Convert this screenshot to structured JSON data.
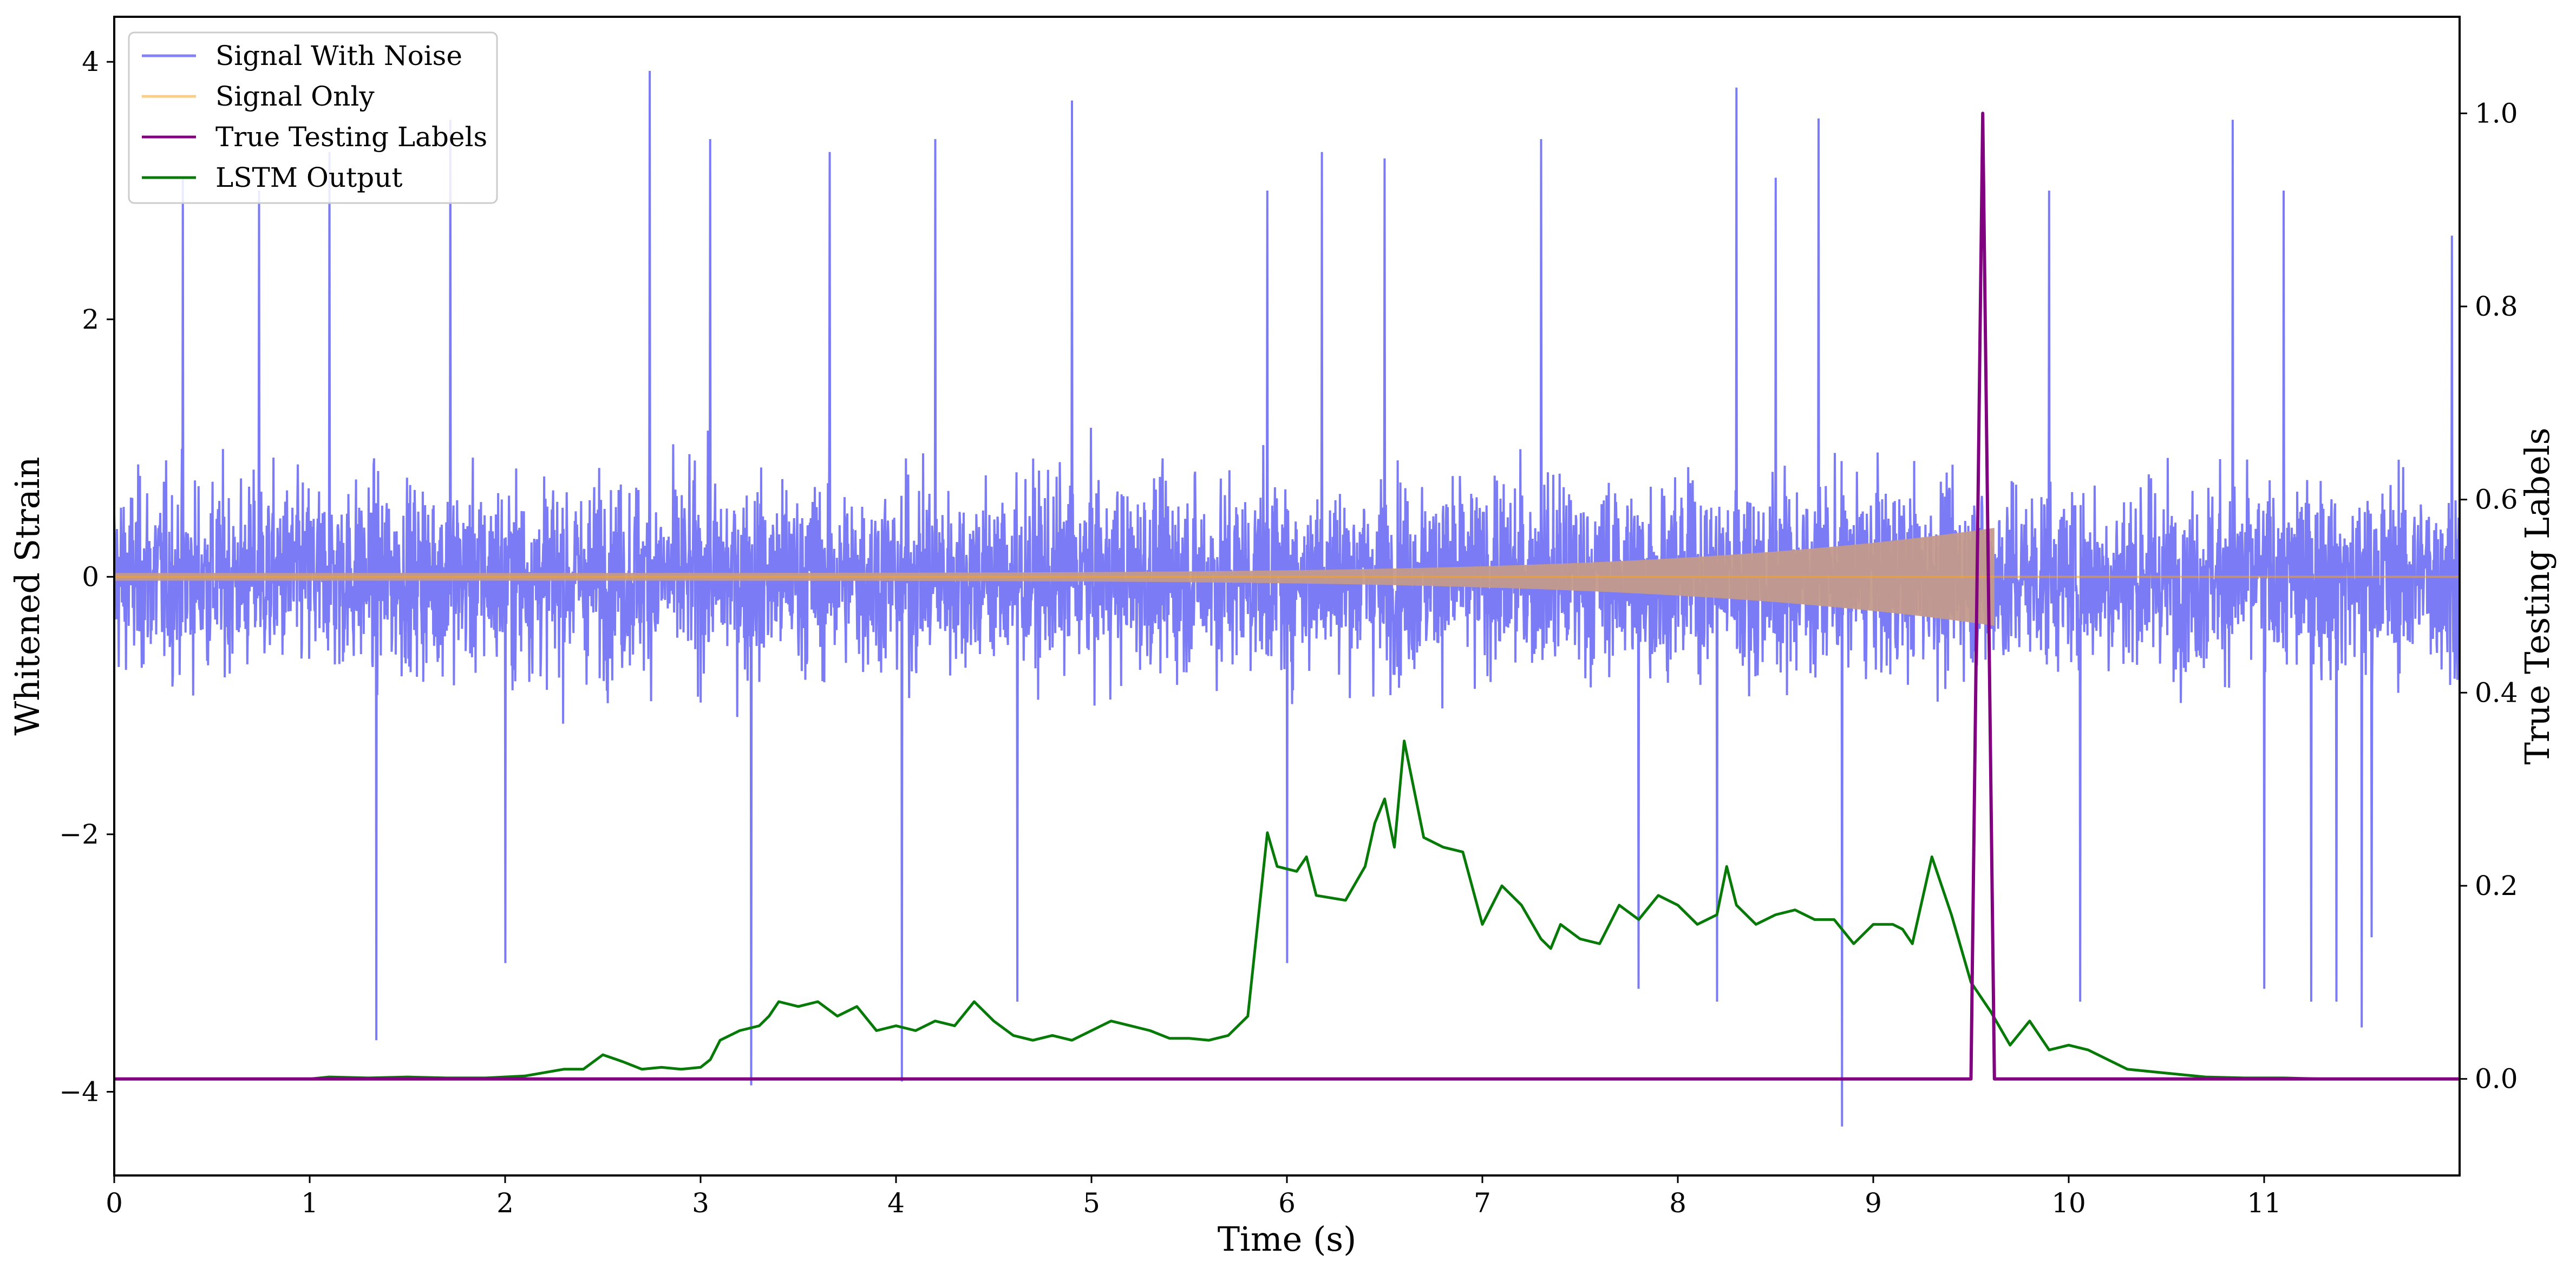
{
  "chart_data": {
    "type": "line",
    "title": "",
    "xlabel": "Time (s)",
    "ylabel_left": "Whitened Strain",
    "ylabel_right": "True Testing Labels",
    "xlim": [
      0,
      12
    ],
    "ylim_left": [
      -4.65,
      4.35
    ],
    "ylim_right": [
      -0.1,
      1.1
    ],
    "xticks": [
      0,
      1,
      2,
      3,
      4,
      5,
      6,
      7,
      8,
      9,
      10,
      11
    ],
    "yticks_left": [
      -4,
      -2,
      0,
      2,
      4
    ],
    "yticks_right": [
      0.0,
      0.2,
      0.4,
      0.6,
      0.8,
      1.0
    ],
    "grid": false,
    "legend_position": "top-left",
    "series": [
      {
        "name": "Signal With Noise",
        "axis": "left",
        "color": "#7b7bf5",
        "noise_std": 0.72,
        "spikes": [
          [
            0.35,
            3.1
          ],
          [
            0.74,
            3.0
          ],
          [
            1.1,
            3.3
          ],
          [
            1.34,
            -3.6
          ],
          [
            1.72,
            3.55
          ],
          [
            2.0,
            -3.0
          ],
          [
            2.74,
            3.93
          ],
          [
            3.05,
            3.4
          ],
          [
            3.26,
            -3.95
          ],
          [
            3.66,
            3.3
          ],
          [
            4.03,
            -3.92
          ],
          [
            4.2,
            3.4
          ],
          [
            4.62,
            -3.3
          ],
          [
            4.9,
            3.7
          ],
          [
            5.9,
            3.0
          ],
          [
            6.0,
            -3.0
          ],
          [
            6.18,
            3.3
          ],
          [
            6.5,
            3.25
          ],
          [
            7.3,
            3.4
          ],
          [
            7.8,
            -3.2
          ],
          [
            8.2,
            -3.3
          ],
          [
            8.3,
            3.8
          ],
          [
            8.5,
            3.1
          ],
          [
            8.72,
            3.56
          ],
          [
            8.84,
            -4.27
          ],
          [
            9.9,
            3.0
          ],
          [
            10.06,
            -3.3
          ],
          [
            10.84,
            3.55
          ],
          [
            11.0,
            -3.2
          ],
          [
            11.24,
            -3.3
          ],
          [
            11.37,
            -3.3
          ],
          [
            11.5,
            -3.5
          ],
          [
            11.55,
            -2.8
          ],
          [
            11.96,
            2.65
          ],
          [
            11.1,
            3.0
          ]
        ]
      },
      {
        "name": "Signal Only",
        "axis": "left",
        "color": "#f5a623",
        "chirp_start": 0.0,
        "merger_time": 9.62,
        "envelope_start": 0.03,
        "envelope_peak": 0.38
      },
      {
        "name": "True Testing Labels",
        "axis": "right",
        "color": "#800080",
        "x": [
          0,
          9.5,
          9.56,
          9.62,
          12
        ],
        "y": [
          0,
          0,
          1.0,
          0,
          0
        ]
      },
      {
        "name": "LSTM Output",
        "axis": "right",
        "color": "#067a06",
        "x": [
          0.0,
          0.5,
          1.0,
          1.1,
          1.3,
          1.5,
          1.7,
          1.9,
          2.1,
          2.3,
          2.4,
          2.5,
          2.6,
          2.7,
          2.8,
          2.9,
          3.0,
          3.05,
          3.1,
          3.2,
          3.3,
          3.35,
          3.4,
          3.5,
          3.6,
          3.7,
          3.8,
          3.9,
          4.0,
          4.1,
          4.2,
          4.3,
          4.4,
          4.5,
          4.6,
          4.7,
          4.8,
          4.9,
          5.0,
          5.1,
          5.2,
          5.3,
          5.4,
          5.5,
          5.6,
          5.7,
          5.8,
          5.9,
          5.95,
          6.05,
          6.1,
          6.15,
          6.3,
          6.4,
          6.45,
          6.5,
          6.55,
          6.6,
          6.7,
          6.8,
          6.9,
          7.0,
          7.1,
          7.15,
          7.2,
          7.3,
          7.35,
          7.4,
          7.5,
          7.6,
          7.7,
          7.8,
          7.9,
          8.0,
          8.1,
          8.2,
          8.25,
          8.3,
          8.4,
          8.5,
          8.6,
          8.7,
          8.8,
          8.9,
          9.0,
          9.1,
          9.15,
          9.2,
          9.3,
          9.4,
          9.5,
          9.6,
          9.7,
          9.8,
          9.9,
          10.0,
          10.1,
          10.2,
          10.3,
          10.5,
          10.7,
          10.9,
          11.1,
          11.3,
          11.5,
          12.0
        ],
        "y": [
          0.0,
          0.0,
          0.0,
          0.002,
          0.001,
          0.002,
          0.001,
          0.001,
          0.003,
          0.01,
          0.01,
          0.025,
          0.018,
          0.01,
          0.012,
          0.01,
          0.012,
          0.02,
          0.04,
          0.05,
          0.055,
          0.065,
          0.08,
          0.075,
          0.08,
          0.065,
          0.075,
          0.05,
          0.055,
          0.05,
          0.06,
          0.055,
          0.08,
          0.06,
          0.045,
          0.04,
          0.045,
          0.04,
          0.05,
          0.06,
          0.055,
          0.05,
          0.042,
          0.042,
          0.04,
          0.045,
          0.065,
          0.255,
          0.22,
          0.215,
          0.23,
          0.19,
          0.185,
          0.22,
          0.265,
          0.29,
          0.24,
          0.35,
          0.25,
          0.24,
          0.235,
          0.16,
          0.2,
          0.19,
          0.18,
          0.145,
          0.135,
          0.16,
          0.145,
          0.14,
          0.18,
          0.165,
          0.19,
          0.18,
          0.16,
          0.17,
          0.22,
          0.18,
          0.16,
          0.17,
          0.175,
          0.165,
          0.165,
          0.14,
          0.16,
          0.16,
          0.155,
          0.14,
          0.23,
          0.17,
          0.1,
          0.07,
          0.035,
          0.06,
          0.03,
          0.035,
          0.03,
          0.02,
          0.01,
          0.006,
          0.002,
          0.001,
          0.001,
          0.0,
          0.0,
          0.0
        ]
      }
    ]
  }
}
